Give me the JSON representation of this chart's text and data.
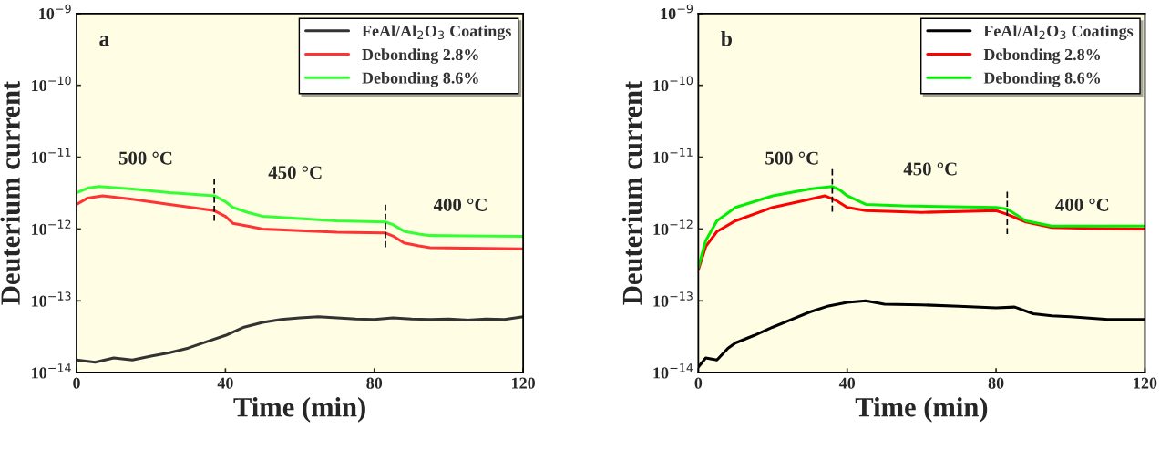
{
  "chart_data": [
    {
      "type": "line",
      "title": "a",
      "xlabel": "Time (min)",
      "ylabel": "Deuterium current",
      "log": "y",
      "xlim": [
        0,
        120
      ],
      "xticks": [
        0,
        40,
        80,
        120
      ],
      "ylim": [
        1e-14,
        1e-09
      ],
      "yticks": [
        {
          "value": 1e-14,
          "label": "10$^{−14}$"
        },
        {
          "value": 1e-13,
          "label": "10$^{−13}$"
        },
        {
          "value": 1e-12,
          "label": "10$^{−12}$"
        },
        {
          "value": 1e-11,
          "label": "10$^{−11}$"
        },
        {
          "value": 1e-10,
          "label": "10$^{−10}$"
        },
        {
          "value": 1e-09,
          "label": "10$^{−9}$"
        }
      ],
      "legend": "top right",
      "grid": false,
      "series": [
        {
          "name": "FeAl/Al$_{2}$O$_{3}$ Coatings",
          "color": "#333333",
          "x": [
            0,
            5,
            10,
            15,
            20,
            25,
            30,
            35,
            40,
            45,
            50,
            55,
            60,
            65,
            70,
            75,
            80,
            85,
            90,
            95,
            100,
            105,
            110,
            115,
            120
          ],
          "values": [
            1.5e-14,
            1.4e-14,
            1.6e-14,
            1.5e-14,
            1.7e-14,
            1.9e-14,
            2.2e-14,
            2.7e-14,
            3.3e-14,
            4.3e-14,
            5e-14,
            5.5e-14,
            5.8e-14,
            6e-14,
            5.8e-14,
            5.6e-14,
            5.5e-14,
            5.8e-14,
            5.6e-14,
            5.5e-14,
            5.6e-14,
            5.4e-14,
            5.6e-14,
            5.5e-14,
            6e-14
          ]
        },
        {
          "name": "Debonding 2.8%",
          "color": "#ff3333",
          "x": [
            0,
            3,
            7,
            15,
            25,
            37,
            40,
            42,
            46,
            50,
            60,
            70,
            83,
            85,
            88,
            92,
            95,
            105,
            120
          ],
          "values": [
            2.2e-12,
            2.7e-12,
            2.9e-12,
            2.6e-12,
            2.2e-12,
            1.8e-12,
            1.5e-12,
            1.2e-12,
            1.1e-12,
            1e-12,
            9.5e-13,
            9e-13,
            8.8e-13,
            8e-13,
            6.4e-13,
            5.8e-13,
            5.5e-13,
            5.4e-13,
            5.3e-13
          ]
        },
        {
          "name": "Debonding 8.6%",
          "color": "#33ff33",
          "x": [
            0,
            3,
            6,
            15,
            25,
            37,
            40,
            42,
            46,
            50,
            60,
            70,
            83,
            85,
            88,
            92,
            95,
            105,
            120
          ],
          "values": [
            3.2e-12,
            3.7e-12,
            3.9e-12,
            3.6e-12,
            3.2e-12,
            2.9e-12,
            2.4e-12,
            2e-12,
            1.7e-12,
            1.5e-12,
            1.4e-12,
            1.3e-12,
            1.25e-12,
            1.15e-12,
            9.3e-13,
            8.5e-13,
            8.1e-13,
            8e-13,
            7.9e-13
          ]
        }
      ],
      "ref_lines": [
        {
          "axis": "x",
          "value": 37,
          "line_style": "dashed",
          "color": "#000000"
        },
        {
          "axis": "x",
          "value": 83,
          "line_style": "dashed",
          "color": "#000000"
        }
      ],
      "annotations": [
        "500 °C",
        "450 °C",
        "400 °C"
      ]
    },
    {
      "type": "line",
      "title": "b",
      "xlabel": "Time (min)",
      "ylabel": "Deuterium current",
      "log": "y",
      "xlim": [
        0,
        120
      ],
      "xticks": [
        0,
        40,
        80,
        120
      ],
      "ylim": [
        1e-14,
        1e-09
      ],
      "yticks": [
        {
          "value": 1e-14,
          "label": "10$^{−14}$"
        },
        {
          "value": 1e-13,
          "label": "10$^{−13}$"
        },
        {
          "value": 1e-12,
          "label": "10$^{−12}$"
        },
        {
          "value": 1e-11,
          "label": "10$^{−11}$"
        },
        {
          "value": 1e-10,
          "label": "10$^{−10}$"
        },
        {
          "value": 1e-09,
          "label": "10$^{−9}$"
        }
      ],
      "legend": "top right",
      "grid": false,
      "series": [
        {
          "name": "FeAl/Al$_{2}$O$_{3}$ Coatings",
          "color": "#000000",
          "x": [
            0,
            2,
            5,
            8,
            10,
            15,
            20,
            25,
            30,
            35,
            40,
            45,
            50,
            60,
            70,
            80,
            85,
            90,
            95,
            100,
            110,
            120
          ],
          "values": [
            1.2e-14,
            1.6e-14,
            1.5e-14,
            2.2e-14,
            2.6e-14,
            3.3e-14,
            4.3e-14,
            5.5e-14,
            7e-14,
            8.5e-14,
            9.5e-14,
            1e-13,
            9e-14,
            8.8e-14,
            8.4e-14,
            8e-14,
            8.2e-14,
            6.6e-14,
            6.2e-14,
            6e-14,
            5.5e-14,
            5.5e-14
          ]
        },
        {
          "name": "Debonding 2.8%",
          "color": "#ff0000",
          "x": [
            0,
            2,
            5,
            10,
            20,
            30,
            34,
            37,
            40,
            45,
            60,
            80,
            83,
            88,
            95,
            105,
            120
          ],
          "values": [
            2.7e-13,
            5.7e-13,
            9.2e-13,
            1.3e-12,
            2e-12,
            2.6e-12,
            2.9e-12,
            2.5e-12,
            2e-12,
            1.8e-12,
            1.7e-12,
            1.8e-12,
            1.6e-12,
            1.25e-12,
            1.05e-12,
            1.02e-12,
            1e-12
          ]
        },
        {
          "name": "Debonding 8.6%",
          "color": "#00ee00",
          "x": [
            0,
            2,
            5,
            10,
            20,
            30,
            36,
            38,
            40,
            45,
            55,
            80,
            83,
            88,
            95,
            105,
            120
          ],
          "values": [
            2.9e-13,
            6.9e-13,
            1.3e-12,
            2e-12,
            2.9e-12,
            3.6e-12,
            3.9e-12,
            3.5e-12,
            2.9e-12,
            2.2e-12,
            2.1e-12,
            2e-12,
            1.9e-12,
            1.3e-12,
            1.1e-12,
            1.1e-12,
            1.1e-12
          ]
        }
      ],
      "ref_lines": [
        {
          "axis": "x",
          "value": 36,
          "line_style": "dashed",
          "color": "#000000"
        },
        {
          "axis": "x",
          "value": 83,
          "line_style": "dashed",
          "color": "#000000"
        }
      ],
      "annotations": [
        "500 °C",
        "450 °C",
        "400 °C"
      ]
    }
  ]
}
